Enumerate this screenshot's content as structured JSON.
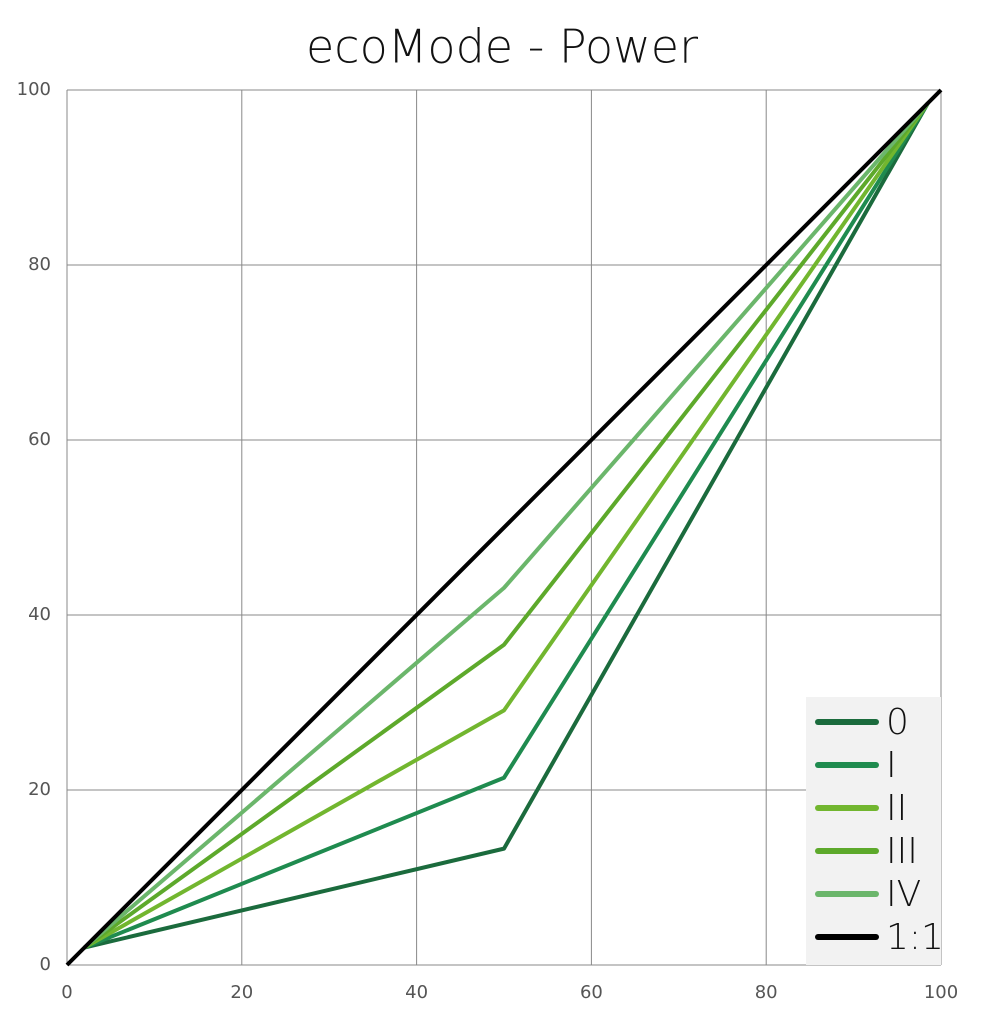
{
  "chart_data": {
    "type": "line",
    "title": "ecoMode - Power",
    "xlim": [
      0,
      100
    ],
    "ylim": [
      0,
      100
    ],
    "xticks": [
      0,
      20,
      40,
      60,
      80,
      100
    ],
    "yticks": [
      0,
      20,
      40,
      60,
      80,
      100
    ],
    "grid": true,
    "legend": "lower right",
    "series": [
      {
        "name": "0",
        "color": "#1b6b3d",
        "x": [
          2,
          50,
          98.5
        ],
        "values": [
          2,
          13.3,
          98.5
        ]
      },
      {
        "name": "I",
        "color": "#1f8b4f",
        "x": [
          2,
          50,
          98.5
        ],
        "values": [
          2,
          21.4,
          98.5
        ]
      },
      {
        "name": "II",
        "color": "#72b62f",
        "x": [
          2,
          50,
          98.5
        ],
        "values": [
          2,
          29.1,
          98.5
        ]
      },
      {
        "name": "III",
        "color": "#5da92b",
        "x": [
          2,
          50,
          98.5
        ],
        "values": [
          2,
          36.6,
          98.5
        ]
      },
      {
        "name": "IV",
        "color": "#6bb66b",
        "x": [
          2,
          50,
          98.5
        ],
        "values": [
          2,
          43.1,
          98.5
        ]
      },
      {
        "name": "1:1",
        "color": "#000000",
        "x": [
          0,
          100
        ],
        "values": [
          0,
          100
        ]
      }
    ]
  }
}
